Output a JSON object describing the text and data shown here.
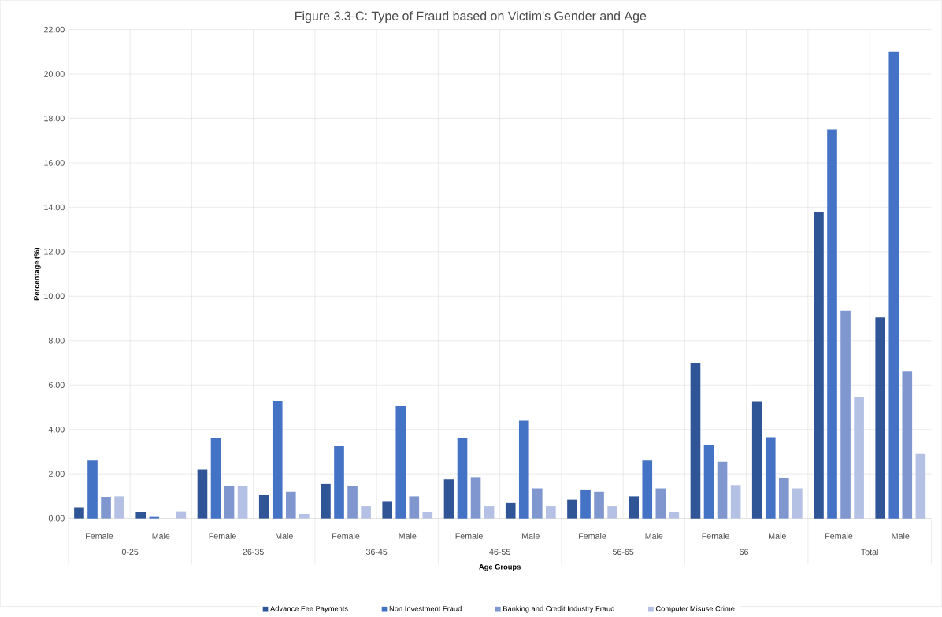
{
  "chart_data": {
    "type": "bar",
    "title": "Figure 3.3-C: Type of Fraud based on Victim's Gender and Age",
    "xlabel": "Age Groups",
    "ylabel": "Percentage (%)",
    "categories": [
      "Female",
      "Male",
      "Female",
      "Male",
      "Female",
      "Male",
      "Female",
      "Male",
      "Female",
      "Male",
      "Female",
      "Male",
      "Female",
      "Male"
    ],
    "annotations": [
      "0-25",
      "26-35",
      "36-45",
      "46-55",
      "56-65",
      "66+",
      "Total"
    ],
    "series": [
      {
        "name": "Advance Fee Payments",
        "color": "#2f5597",
        "values": [
          0.5,
          0.28,
          2.2,
          1.05,
          1.55,
          0.75,
          1.75,
          0.7,
          0.85,
          1.0,
          7.0,
          5.25,
          13.8,
          9.05
        ]
      },
      {
        "name": "Non Investment Fraud",
        "color": "#4472c4",
        "values": [
          2.6,
          0.07,
          3.6,
          5.3,
          3.25,
          5.05,
          3.6,
          4.4,
          1.3,
          2.6,
          3.3,
          3.65,
          17.5,
          21.0
        ]
      },
      {
        "name": "Banking and Credit Industry Fraud",
        "color": "#7f96cf",
        "values": [
          0.95,
          0.0,
          1.45,
          1.2,
          1.45,
          1.0,
          1.85,
          1.35,
          1.2,
          1.35,
          2.55,
          1.8,
          9.35,
          6.6
        ]
      },
      {
        "name": "Computer Misuse Crime",
        "color": "#b4c0e4",
        "values": [
          1.0,
          0.32,
          1.45,
          0.2,
          0.55,
          0.3,
          0.55,
          0.55,
          0.55,
          0.3,
          1.5,
          1.35,
          5.45,
          2.9
        ]
      }
    ],
    "ylim": [
      0,
      22
    ],
    "yticks": [
      {
        "value": 0,
        "label": "0.00"
      },
      {
        "value": 2,
        "label": "2.00"
      },
      {
        "value": 4,
        "label": "4.00"
      },
      {
        "value": 6,
        "label": "6.00"
      },
      {
        "value": 8,
        "label": "8.00"
      },
      {
        "value": 10,
        "label": "10.00"
      },
      {
        "value": 12,
        "label": "12.00"
      },
      {
        "value": 14,
        "label": "14.00"
      },
      {
        "value": 16,
        "label": "16.00"
      },
      {
        "value": 18,
        "label": "18.00"
      },
      {
        "value": 20,
        "label": "20.00"
      },
      {
        "value": 22,
        "label": "22.00"
      }
    ],
    "grid": true,
    "legend": "bottom"
  }
}
